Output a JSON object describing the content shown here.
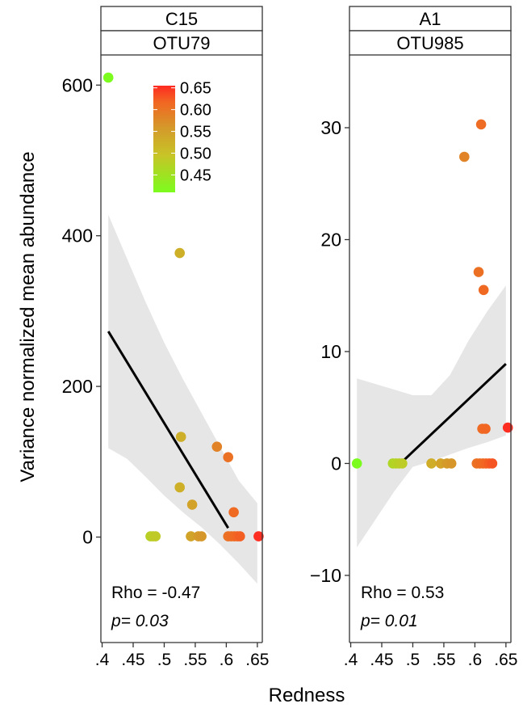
{
  "chart_data": {
    "type": "scatter",
    "xlabel": "Redness",
    "ylabel": "Variance normalized mean abundance",
    "x_ticks": [
      0.4,
      0.45,
      0.5,
      0.55,
      0.6,
      0.65
    ],
    "x_tick_labels": [
      ".4",
      ".45",
      ".5",
      ".55",
      ".6",
      ".65"
    ],
    "grid": false,
    "legend": {
      "type": "colorbar",
      "placement": "top-right of left panel",
      "min": 0.41,
      "max": 0.655,
      "ticks": [
        0.65,
        0.6,
        0.55,
        0.5,
        0.45
      ],
      "tick_labels": [
        "0.65",
        "0.60",
        "0.55",
        "0.50",
        "0.45"
      ],
      "colors": [
        "#7cfc1e",
        "#c8c427",
        "#d49a2a",
        "#f26522",
        "#ff2a22"
      ]
    },
    "panels": [
      {
        "strip_top": "C15",
        "strip_bottom": "OTU79",
        "xlim": [
          0.398,
          0.658
        ],
        "ylim": [
          -140,
          640
        ],
        "y_ticks": [
          0,
          200,
          400,
          600
        ],
        "y_tick_labels": [
          "0",
          "200",
          "400",
          "600"
        ],
        "points": [
          {
            "x": 0.41,
            "y": 610
          },
          {
            "x": 0.478,
            "y": 1
          },
          {
            "x": 0.482,
            "y": 1
          },
          {
            "x": 0.486,
            "y": 1
          },
          {
            "x": 0.525,
            "y": 377
          },
          {
            "x": 0.527,
            "y": 133
          },
          {
            "x": 0.525,
            "y": 66
          },
          {
            "x": 0.545,
            "y": 43
          },
          {
            "x": 0.543,
            "y": 1
          },
          {
            "x": 0.555,
            "y": 1
          },
          {
            "x": 0.56,
            "y": 1
          },
          {
            "x": 0.585,
            "y": 120
          },
          {
            "x": 0.603,
            "y": 106
          },
          {
            "x": 0.612,
            "y": 33
          },
          {
            "x": 0.603,
            "y": 1
          },
          {
            "x": 0.608,
            "y": 1
          },
          {
            "x": 0.613,
            "y": 1
          },
          {
            "x": 0.618,
            "y": 1
          },
          {
            "x": 0.622,
            "y": 1
          },
          {
            "x": 0.652,
            "y": 1
          }
        ],
        "fit_line": {
          "x": [
            0.41,
            0.603
          ],
          "y": [
            273,
            12
          ]
        },
        "ci_band": {
          "x": [
            0.41,
            0.44,
            0.47,
            0.5,
            0.53,
            0.56,
            0.59,
            0.62,
            0.65
          ],
          "upper": [
            428,
            370,
            312,
            258,
            210,
            165,
            120,
            75,
            45
          ],
          "lower": [
            118,
            104,
            80,
            55,
            33,
            13,
            -10,
            -35,
            -62
          ]
        },
        "annotation_rho": "Rho = -0.47",
        "annotation_p": "p= 0.03"
      },
      {
        "strip_top": "A1",
        "strip_bottom": "OTU985",
        "xlim": [
          0.398,
          0.658
        ],
        "ylim": [
          -16,
          36.5
        ],
        "y_ticks": [
          -10,
          0,
          10,
          20,
          30
        ],
        "y_tick_labels": [
          "−10",
          "0",
          "10",
          "20",
          "30"
        ],
        "points": [
          {
            "x": 0.41,
            "y": 0
          },
          {
            "x": 0.468,
            "y": 0
          },
          {
            "x": 0.473,
            "y": 0
          },
          {
            "x": 0.478,
            "y": 0
          },
          {
            "x": 0.483,
            "y": 0
          },
          {
            "x": 0.53,
            "y": 0
          },
          {
            "x": 0.545,
            "y": 0
          },
          {
            "x": 0.555,
            "y": 0
          },
          {
            "x": 0.562,
            "y": 0
          },
          {
            "x": 0.583,
            "y": 27.4
          },
          {
            "x": 0.61,
            "y": 30.3
          },
          {
            "x": 0.606,
            "y": 17.1
          },
          {
            "x": 0.614,
            "y": 15.5
          },
          {
            "x": 0.612,
            "y": 3.1
          },
          {
            "x": 0.617,
            "y": 3.1
          },
          {
            "x": 0.653,
            "y": 3.2
          },
          {
            "x": 0.603,
            "y": 0
          },
          {
            "x": 0.608,
            "y": 0
          },
          {
            "x": 0.613,
            "y": 0
          },
          {
            "x": 0.618,
            "y": 0
          },
          {
            "x": 0.623,
            "y": 0
          },
          {
            "x": 0.628,
            "y": 0
          }
        ],
        "fit_line": {
          "x": [
            0.48,
            0.65
          ],
          "y": [
            0,
            8.9
          ]
        },
        "ci_band": {
          "x": [
            0.41,
            0.44,
            0.47,
            0.5,
            0.53,
            0.56,
            0.59,
            0.62,
            0.65
          ],
          "upper": [
            7.6,
            7.1,
            6.6,
            6.1,
            6.1,
            7.9,
            11.0,
            13.6,
            15.9
          ],
          "lower": [
            -7.5,
            -5.0,
            -2.5,
            -0.3,
            0.2,
            0.8,
            1.4,
            1.9,
            2.5
          ]
        },
        "annotation_rho": "Rho = 0.53",
        "annotation_p": "p= 0.01"
      }
    ]
  }
}
